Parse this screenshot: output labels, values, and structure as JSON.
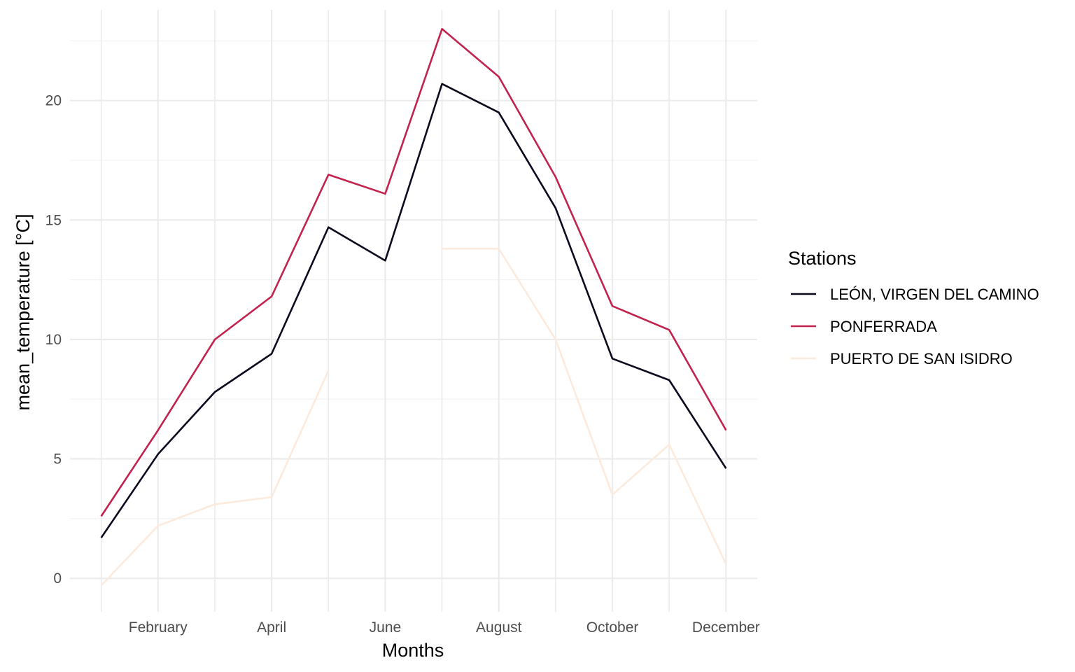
{
  "chart_data": {
    "type": "line",
    "xlabel": "Months",
    "ylabel": "mean_temperature [°C]",
    "x_ticks": [
      {
        "month": 2,
        "label": "February"
      },
      {
        "month": 4,
        "label": "April"
      },
      {
        "month": 6,
        "label": "June"
      },
      {
        "month": 8,
        "label": "August"
      },
      {
        "month": 10,
        "label": "October"
      },
      {
        "month": 12,
        "label": "December"
      }
    ],
    "xlim": [
      0.45,
      12.55
    ],
    "y_ticks": [
      0,
      5,
      10,
      15,
      20
    ],
    "ylim": [
      -1.4,
      23.8
    ],
    "grid": true,
    "legend": {
      "title": "Stations",
      "position": "right"
    },
    "series": [
      {
        "name": "LEÓN, VIRGEN DEL CAMINO",
        "color": "#0b0a1f",
        "x": [
          1,
          2,
          3,
          4,
          5,
          6,
          7,
          8,
          9,
          10,
          11,
          12
        ],
        "values": [
          1.7,
          5.2,
          7.8,
          9.4,
          14.7,
          13.3,
          20.7,
          19.5,
          15.5,
          9.2,
          8.3,
          4.6
        ]
      },
      {
        "name": "PONFERRADA",
        "color": "#c2224e",
        "x": [
          1,
          2,
          3,
          4,
          5,
          6,
          7,
          8,
          9,
          10,
          11,
          12
        ],
        "values": [
          2.6,
          6.2,
          10.0,
          11.8,
          16.9,
          16.1,
          23.0,
          21.0,
          16.8,
          11.4,
          10.4,
          6.2
        ]
      },
      {
        "name": "PUERTO DE SAN ISIDRO",
        "color": "#fcebdc",
        "x": [
          1,
          2,
          3,
          4,
          5,
          6,
          7,
          8,
          9,
          10,
          11,
          12
        ],
        "values": [
          -0.3,
          2.2,
          3.1,
          3.4,
          8.7,
          null,
          13.8,
          13.8,
          10.0,
          3.5,
          5.6,
          0.6
        ]
      }
    ]
  }
}
